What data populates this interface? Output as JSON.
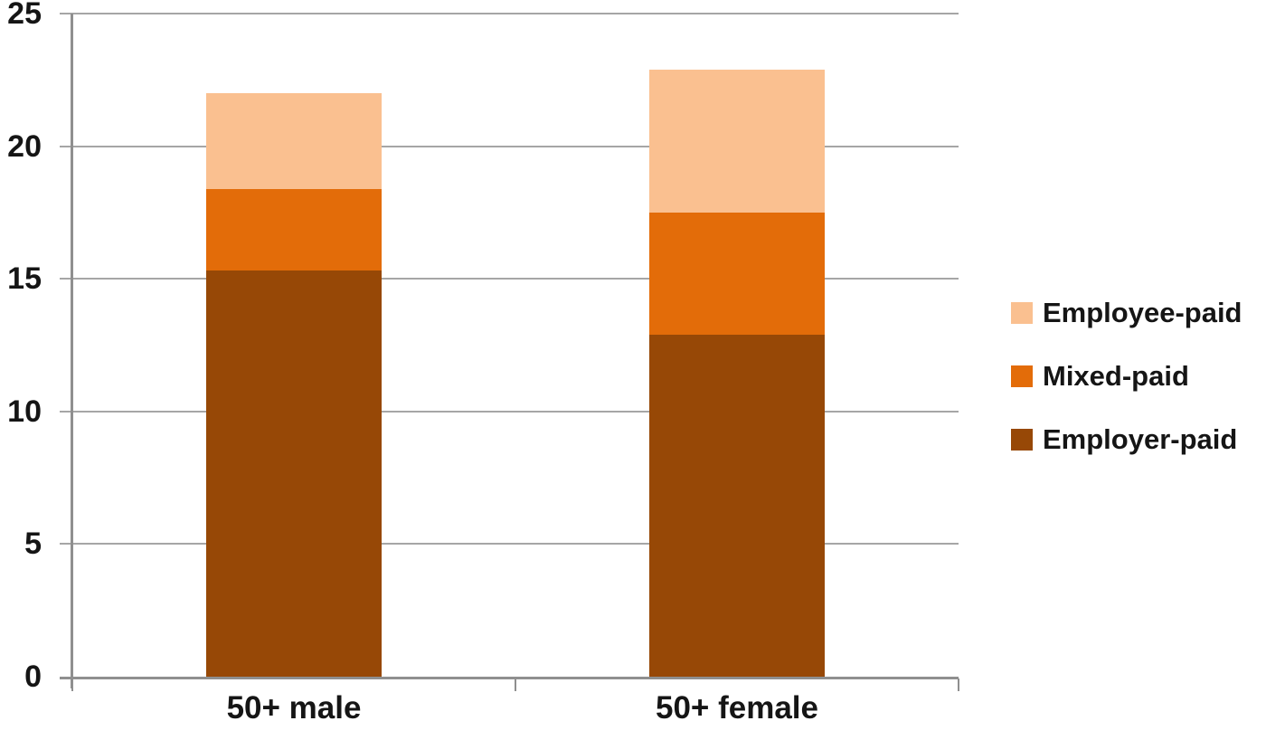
{
  "chart_data": {
    "type": "bar",
    "stacked": true,
    "title": "",
    "xlabel": "",
    "ylabel": "",
    "categories": [
      "50+ male",
      "50+ female"
    ],
    "series": [
      {
        "name": "Employer-paid",
        "color": "#974806",
        "values": [
          15.3,
          12.9
        ]
      },
      {
        "name": "Mixed-paid",
        "color": "#E36C09",
        "values": [
          3.1,
          4.6
        ]
      },
      {
        "name": "Employee-paid",
        "color": "#FAC090",
        "values": [
          3.6,
          5.4
        ]
      }
    ],
    "stack_totals": [
      22.0,
      22.9
    ],
    "ylim": [
      0,
      25
    ],
    "yticks": [
      0,
      5,
      10,
      15,
      20,
      25
    ],
    "grid": true,
    "legend_position": "right",
    "legend_order": [
      "Employee-paid",
      "Mixed-paid",
      "Employer-paid"
    ],
    "colors": {
      "gridline": "#a6a6a6",
      "axis": "#8f8f8f",
      "text": "#151515",
      "background": "#ffffff"
    }
  }
}
